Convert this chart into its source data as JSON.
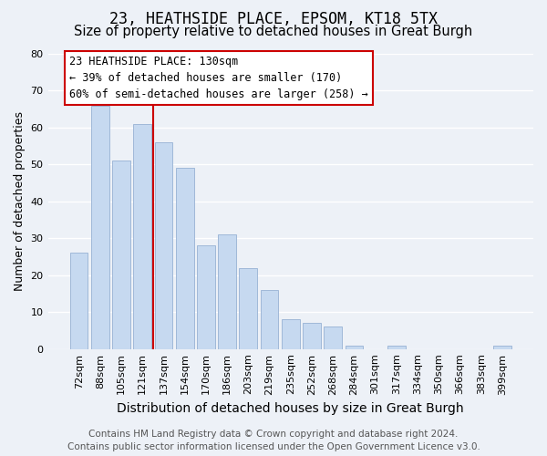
{
  "title": "23, HEATHSIDE PLACE, EPSOM, KT18 5TX",
  "subtitle": "Size of property relative to detached houses in Great Burgh",
  "xlabel": "Distribution of detached houses by size in Great Burgh",
  "ylabel": "Number of detached properties",
  "bar_labels": [
    "72sqm",
    "88sqm",
    "105sqm",
    "121sqm",
    "137sqm",
    "154sqm",
    "170sqm",
    "186sqm",
    "203sqm",
    "219sqm",
    "235sqm",
    "252sqm",
    "268sqm",
    "284sqm",
    "301sqm",
    "317sqm",
    "334sqm",
    "350sqm",
    "366sqm",
    "383sqm",
    "399sqm"
  ],
  "bar_values": [
    26,
    66,
    51,
    61,
    56,
    49,
    28,
    31,
    22,
    16,
    8,
    7,
    6,
    1,
    0,
    1,
    0,
    0,
    0,
    0,
    1
  ],
  "bar_color": "#c6d9f0",
  "bar_edge_color": "#a0b8d8",
  "vline_x": 3.5,
  "vline_color": "#cc0000",
  "ylim": [
    0,
    80
  ],
  "yticks": [
    0,
    10,
    20,
    30,
    40,
    50,
    60,
    70,
    80
  ],
  "annotation_title": "23 HEATHSIDE PLACE: 130sqm",
  "annotation_line1": "← 39% of detached houses are smaller (170)",
  "annotation_line2": "60% of semi-detached houses are larger (258) →",
  "annotation_box_color": "#ffffff",
  "annotation_box_edge": "#cc0000",
  "footer_line1": "Contains HM Land Registry data © Crown copyright and database right 2024.",
  "footer_line2": "Contains public sector information licensed under the Open Government Licence v3.0.",
  "background_color": "#edf1f7",
  "grid_color": "#ffffff",
  "title_fontsize": 12,
  "subtitle_fontsize": 10.5,
  "xlabel_fontsize": 10,
  "ylabel_fontsize": 9,
  "tick_fontsize": 8,
  "footer_fontsize": 7.5
}
